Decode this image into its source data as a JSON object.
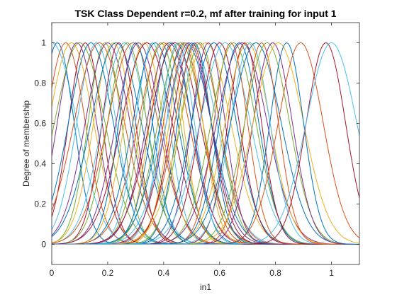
{
  "chart_data": {
    "type": "line",
    "title": "TSK Class Dependent r=0.2, mf after training for input 1",
    "xlabel": "in1",
    "ylabel": "Degree of membership",
    "xlim": [
      0,
      1.1
    ],
    "ylim": [
      -0.1,
      1.1
    ],
    "xticks": [
      0,
      0.2,
      0.4,
      0.6,
      0.8,
      1
    ],
    "xtick_labels": [
      "0",
      "0.2",
      "0.4",
      "0.6",
      "0.8",
      "1"
    ],
    "yticks": [
      0,
      0.2,
      0.4,
      0.6,
      0.8,
      1
    ],
    "ytick_labels": [
      "0",
      "0.2",
      "0.4",
      "0.6",
      "0.8",
      "1"
    ],
    "grid": false,
    "legend": "none",
    "series_type": "gaussian membership functions",
    "series": [
      {
        "center": 0.0,
        "sigma": 0.09,
        "color": "#4DBEEE"
      },
      {
        "center": 0.02,
        "sigma": 0.06,
        "color": "#0072BD"
      },
      {
        "center": 0.05,
        "sigma": 0.07,
        "color": "#D95319"
      },
      {
        "center": 0.07,
        "sigma": 0.08,
        "color": "#EDB120"
      },
      {
        "center": 0.09,
        "sigma": 0.07,
        "color": "#7E2F8E"
      },
      {
        "center": 0.1,
        "sigma": 0.09,
        "color": "#77AC30"
      },
      {
        "center": 0.12,
        "sigma": 0.06,
        "color": "#A2142F"
      },
      {
        "center": 0.14,
        "sigma": 0.08,
        "color": "#0072BD"
      },
      {
        "center": 0.16,
        "sigma": 0.07,
        "color": "#4DBEEE"
      },
      {
        "center": 0.17,
        "sigma": 0.09,
        "color": "#D95319"
      },
      {
        "center": 0.19,
        "sigma": 0.06,
        "color": "#77AC30"
      },
      {
        "center": 0.2,
        "sigma": 0.08,
        "color": "#7E2F8E"
      },
      {
        "center": 0.22,
        "sigma": 0.07,
        "color": "#EDB120"
      },
      {
        "center": 0.23,
        "sigma": 0.09,
        "color": "#0072BD"
      },
      {
        "center": 0.24,
        "sigma": 0.06,
        "color": "#A2142F"
      },
      {
        "center": 0.26,
        "sigma": 0.08,
        "color": "#4DBEEE"
      },
      {
        "center": 0.27,
        "sigma": 0.07,
        "color": "#77AC30"
      },
      {
        "center": 0.29,
        "sigma": 0.09,
        "color": "#D95319"
      },
      {
        "center": 0.3,
        "sigma": 0.06,
        "color": "#0072BD"
      },
      {
        "center": 0.31,
        "sigma": 0.08,
        "color": "#7E2F8E"
      },
      {
        "center": 0.33,
        "sigma": 0.07,
        "color": "#EDB120"
      },
      {
        "center": 0.34,
        "sigma": 0.09,
        "color": "#A2142F"
      },
      {
        "center": 0.36,
        "sigma": 0.06,
        "color": "#4DBEEE"
      },
      {
        "center": 0.37,
        "sigma": 0.08,
        "color": "#0072BD"
      },
      {
        "center": 0.39,
        "sigma": 0.07,
        "color": "#77AC30"
      },
      {
        "center": 0.4,
        "sigma": 0.09,
        "color": "#D95319"
      },
      {
        "center": 0.41,
        "sigma": 0.06,
        "color": "#EDB120"
      },
      {
        "center": 0.42,
        "sigma": 0.08,
        "color": "#7E2F8E"
      },
      {
        "center": 0.43,
        "sigma": 0.07,
        "color": "#0072BD"
      },
      {
        "center": 0.44,
        "sigma": 0.09,
        "color": "#A2142F"
      },
      {
        "center": 0.45,
        "sigma": 0.06,
        "color": "#4DBEEE"
      },
      {
        "center": 0.46,
        "sigma": 0.08,
        "color": "#77AC30"
      },
      {
        "center": 0.47,
        "sigma": 0.07,
        "color": "#D95319"
      },
      {
        "center": 0.48,
        "sigma": 0.09,
        "color": "#0072BD"
      },
      {
        "center": 0.48,
        "sigma": 0.06,
        "color": "#EDB120"
      },
      {
        "center": 0.49,
        "sigma": 0.08,
        "color": "#7E2F8E"
      },
      {
        "center": 0.5,
        "sigma": 0.07,
        "color": "#A2142F"
      },
      {
        "center": 0.5,
        "sigma": 0.09,
        "color": "#4DBEEE"
      },
      {
        "center": 0.51,
        "sigma": 0.06,
        "color": "#0072BD"
      },
      {
        "center": 0.52,
        "sigma": 0.08,
        "color": "#D95319"
      },
      {
        "center": 0.53,
        "sigma": 0.07,
        "color": "#77AC30"
      },
      {
        "center": 0.55,
        "sigma": 0.09,
        "color": "#EDB120"
      },
      {
        "center": 0.56,
        "sigma": 0.06,
        "color": "#7E2F8E"
      },
      {
        "center": 0.58,
        "sigma": 0.08,
        "color": "#0072BD"
      },
      {
        "center": 0.6,
        "sigma": 0.07,
        "color": "#A2142F"
      },
      {
        "center": 0.62,
        "sigma": 0.09,
        "color": "#4DBEEE"
      },
      {
        "center": 0.64,
        "sigma": 0.06,
        "color": "#D95319"
      },
      {
        "center": 0.65,
        "sigma": 0.08,
        "color": "#77AC30"
      },
      {
        "center": 0.67,
        "sigma": 0.07,
        "color": "#0072BD"
      },
      {
        "center": 0.68,
        "sigma": 0.09,
        "color": "#7E2F8E"
      },
      {
        "center": 0.69,
        "sigma": 0.06,
        "color": "#A2142F"
      },
      {
        "center": 0.7,
        "sigma": 0.08,
        "color": "#EDB120"
      },
      {
        "center": 0.71,
        "sigma": 0.07,
        "color": "#4DBEEE"
      },
      {
        "center": 0.73,
        "sigma": 0.09,
        "color": "#0072BD"
      },
      {
        "center": 0.75,
        "sigma": 0.06,
        "color": "#D95319"
      },
      {
        "center": 0.77,
        "sigma": 0.08,
        "color": "#77AC30"
      },
      {
        "center": 0.79,
        "sigma": 0.07,
        "color": "#7E2F8E"
      },
      {
        "center": 0.81,
        "sigma": 0.09,
        "color": "#EDB120"
      },
      {
        "center": 0.84,
        "sigma": 0.06,
        "color": "#0072BD"
      },
      {
        "center": 0.89,
        "sigma": 0.08,
        "color": "#D95319"
      },
      {
        "center": 0.98,
        "sigma": 0.07,
        "color": "#A2142F"
      },
      {
        "center": 1.0,
        "sigma": 0.09,
        "color": "#4DBEEE"
      }
    ]
  }
}
